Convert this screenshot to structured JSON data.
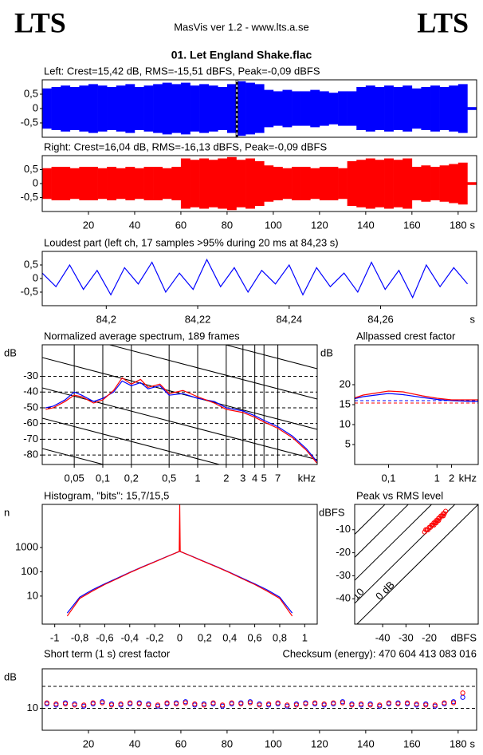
{
  "header": {
    "logo_left": "LTS",
    "logo_right": "LTS",
    "title": "MasVis ver 1.2 - www.lts.a.se",
    "file": "01. Let England Shake.flac"
  },
  "chart_data": [
    {
      "type": "waveform",
      "title": "Left: Crest=15,42 dB, RMS=-15,51 dBFS, Peak=-0,09 dBFS",
      "color": "#0000ff",
      "x": [
        0,
        4,
        8,
        12,
        16,
        20,
        24,
        28,
        32,
        36,
        40,
        44,
        48,
        52,
        56,
        60,
        64,
        68,
        72,
        76,
        80,
        84,
        88,
        92,
        96,
        100,
        104,
        108,
        112,
        116,
        120,
        124,
        128,
        132,
        136,
        140,
        144,
        148,
        152,
        156,
        160,
        164,
        168,
        172,
        176,
        180,
        184
      ],
      "values": [
        0.7,
        0.75,
        0.8,
        0.75,
        0.8,
        0.85,
        0.8,
        0.75,
        0.8,
        0.85,
        0.75,
        0.8,
        0.85,
        0.9,
        0.85,
        0.9,
        0.8,
        0.85,
        0.8,
        0.75,
        0.85,
        0.95,
        0.9,
        0.85,
        0.65,
        0.6,
        0.65,
        0.6,
        0.6,
        0.65,
        0.6,
        0.55,
        0.6,
        0.6,
        0.75,
        0.8,
        0.75,
        0.8,
        0.75,
        0.8,
        0.7,
        0.75,
        0.8,
        0.75,
        0.8,
        0.85,
        0.05
      ],
      "marker_x": 84.23,
      "xlim": [
        0,
        188
      ],
      "ylim": [
        -1,
        1
      ],
      "yticks": [
        {
          "value": 0.5,
          "label": "0,5"
        },
        0,
        {
          "value": -0.5,
          "label": "-0,5"
        }
      ]
    },
    {
      "type": "waveform",
      "title": "Right: Crest=16,04 dB, RMS=-16,13 dBFS, Peak=-0,09 dBFS",
      "color": "#ff0000",
      "x": [
        0,
        4,
        8,
        12,
        16,
        20,
        24,
        28,
        32,
        36,
        40,
        44,
        48,
        52,
        56,
        60,
        64,
        68,
        72,
        76,
        80,
        84,
        88,
        92,
        96,
        100,
        104,
        108,
        112,
        116,
        120,
        124,
        128,
        132,
        136,
        140,
        144,
        148,
        152,
        156,
        160,
        164,
        168,
        172,
        176,
        180,
        184
      ],
      "values": [
        0.55,
        0.6,
        0.6,
        0.55,
        0.6,
        0.6,
        0.55,
        0.6,
        0.55,
        0.6,
        0.55,
        0.6,
        0.6,
        0.55,
        0.6,
        0.9,
        0.85,
        0.9,
        0.85,
        0.9,
        0.95,
        0.85,
        0.9,
        0.8,
        0.65,
        0.6,
        0.55,
        0.6,
        0.6,
        0.55,
        0.6,
        0.6,
        0.55,
        0.8,
        0.85,
        0.9,
        0.85,
        0.9,
        0.85,
        0.9,
        0.6,
        0.65,
        0.6,
        0.65,
        0.7,
        0.75,
        0.05
      ],
      "xlim": [
        0,
        188
      ],
      "ylim": [
        -1,
        1
      ],
      "x_unit": "s",
      "yticks": [
        {
          "value": 0.5,
          "label": "0,5"
        },
        0,
        {
          "value": -0.5,
          "label": "-0,5"
        }
      ],
      "xticks": [
        20,
        40,
        60,
        80,
        100,
        120,
        140,
        160,
        180
      ]
    },
    {
      "type": "line",
      "title": "Loudest part (left  ch, 17 samples >95% during 20 ms at 84,23 s)",
      "color": "#0000ff",
      "x": [
        84.186,
        84.189,
        84.192,
        84.195,
        84.198,
        84.201,
        84.204,
        84.207,
        84.21,
        84.213,
        84.216,
        84.219,
        84.222,
        84.225,
        84.228,
        84.231,
        84.234,
        84.237,
        84.24,
        84.243,
        84.246,
        84.249,
        84.252,
        84.255,
        84.258,
        84.261,
        84.264,
        84.267,
        84.27,
        84.273,
        84.276,
        84.279
      ],
      "values": [
        0.2,
        -0.3,
        0.5,
        -0.4,
        0.3,
        -0.6,
        0.4,
        -0.2,
        0.6,
        -0.5,
        0.2,
        -0.4,
        0.7,
        -0.3,
        0.4,
        -0.5,
        0.3,
        -0.2,
        0.5,
        -0.6,
        0.4,
        -0.3,
        0.2,
        -0.5,
        0.6,
        -0.4,
        0.3,
        -0.7,
        0.5,
        -0.3,
        0.4,
        -0.2
      ],
      "xlim": [
        84.186,
        84.281
      ],
      "ylim": [
        -1,
        1
      ],
      "x_unit": "s",
      "yticks": [
        {
          "value": 0.5,
          "label": "0,5"
        },
        0,
        {
          "value": -0.5,
          "label": "-0,5"
        }
      ],
      "xticks": [
        {
          "value": 84.2,
          "label": "84,2"
        },
        {
          "value": 84.22,
          "label": "84,22"
        },
        {
          "value": 84.24,
          "label": "84,24"
        },
        {
          "value": 84.26,
          "label": "84,26"
        }
      ]
    },
    {
      "type": "line",
      "title": "Normalized average spectrum, 189 frames",
      "y_unit": "dB",
      "x_unit": "kHz",
      "xscale": "log",
      "grid": true,
      "x": [
        0.025,
        0.03,
        0.04,
        0.05,
        0.06,
        0.08,
        0.1,
        0.13,
        0.16,
        0.2,
        0.25,
        0.3,
        0.4,
        0.5,
        0.7,
        1,
        1.5,
        2,
        3,
        4,
        5,
        7,
        10,
        14,
        18
      ],
      "series": [
        {
          "color": "#0000ff",
          "values": [
            -50,
            -49,
            -45,
            -40,
            -42,
            -46,
            -44,
            -40,
            -33,
            -36,
            -34,
            -38,
            -36,
            -42,
            -41,
            -44,
            -46,
            -50,
            -52,
            -55,
            -58,
            -62,
            -68,
            -76,
            -84
          ]
        },
        {
          "color": "#ff0000",
          "values": [
            -51,
            -50,
            -46,
            -42,
            -43,
            -47,
            -45,
            -39,
            -31,
            -35,
            -32,
            -37,
            -35,
            -41,
            -39,
            -43,
            -47,
            -51,
            -53,
            -56,
            -59,
            -63,
            -69,
            -77,
            -85
          ]
        }
      ],
      "xlim": [
        0.023,
        18.2
      ],
      "ylim": [
        -86,
        -10
      ],
      "yticks": [
        -30,
        -40,
        -50,
        -60,
        -70,
        -80
      ],
      "xticks": [
        {
          "value": 0.05,
          "label": "0,05"
        },
        {
          "value": 0.1,
          "label": "0,1"
        },
        {
          "value": 0.2,
          "label": "0,2"
        },
        {
          "value": 0.5,
          "label": "0,5"
        },
        1,
        2,
        3,
        4,
        5,
        7
      ]
    },
    {
      "type": "line",
      "title": "Allpassed crest factor",
      "y_unit": "dB",
      "x_unit": "kHz",
      "xscale": "log",
      "x": [
        0.02,
        0.03,
        0.1,
        0.2,
        0.5,
        1,
        2,
        5,
        7
      ],
      "series": [
        {
          "color": "#0000ff",
          "values": [
            16.5,
            17,
            17.8,
            17.5,
            16.8,
            16.3,
            16,
            15.8,
            15.8
          ]
        },
        {
          "color": "#ff0000",
          "values": [
            16.7,
            17.4,
            18.4,
            18.2,
            17.2,
            16.6,
            16.2,
            16.2,
            16.2
          ]
        }
      ],
      "reference_lines": [
        16,
        15.4
      ],
      "xlim": [
        0.02,
        7.1
      ],
      "ylim": [
        0,
        30
      ],
      "yticks": [
        20,
        15,
        10,
        5
      ],
      "xticks": [
        {
          "value": 0.1,
          "label": "0,1"
        },
        1,
        2
      ]
    },
    {
      "type": "line",
      "title": "Histogram, \"bits\": 15,7/15,5",
      "y_unit": "n",
      "yscale": "log",
      "x": [
        -0.9,
        -0.8,
        -0.7,
        -0.6,
        -0.5,
        -0.4,
        -0.3,
        -0.2,
        -0.1,
        0,
        0.1,
        0.2,
        0.3,
        0.4,
        0.5,
        0.6,
        0.7,
        0.8,
        0.9
      ],
      "series": [
        {
          "color": "#0000ff",
          "values": [
            2,
            9,
            18,
            32,
            55,
            95,
            160,
            260,
            430,
            700,
            430,
            260,
            160,
            95,
            55,
            32,
            18,
            9,
            2
          ]
        },
        {
          "color": "#ff0000",
          "x": [
            -0.9,
            -0.8,
            -0.7,
            -0.6,
            -0.5,
            -0.4,
            -0.3,
            -0.2,
            -0.1,
            -0.004,
            0,
            0.004,
            0.1,
            0.2,
            0.3,
            0.4,
            0.5,
            0.6,
            0.7,
            0.8,
            0.9
          ],
          "values": [
            1.5,
            8,
            16,
            30,
            52,
            92,
            155,
            255,
            425,
            690,
            60000,
            690,
            425,
            255,
            155,
            92,
            52,
            30,
            16,
            8,
            1.5
          ]
        }
      ],
      "xlim": [
        -1.1,
        1.1
      ],
      "ylim": [
        0.7,
        60000
      ],
      "yticks": [
        10,
        100,
        1000
      ],
      "xticks": [
        -1,
        {
          "value": -0.8,
          "label": "-0,8"
        },
        {
          "value": -0.6,
          "label": "-0,6"
        },
        {
          "value": -0.4,
          "label": "-0,4"
        },
        {
          "value": -0.2,
          "label": "-0,2"
        },
        0,
        {
          "value": 0.2,
          "label": "0,2"
        },
        {
          "value": 0.4,
          "label": "0,4"
        },
        {
          "value": 0.6,
          "label": "0,6"
        },
        {
          "value": 0.8,
          "label": "0,8"
        },
        1
      ]
    },
    {
      "type": "scatter",
      "title": "Peak vs RMS level",
      "y_unit": "dBFS",
      "x_unit": "dBFS",
      "color": "#ff0000",
      "x": [
        -22,
        -21,
        -20,
        -19,
        -18,
        -17,
        -16,
        -15,
        -14,
        -13,
        -20.5,
        -19.5,
        -18.5,
        -17.5,
        -16.5,
        -15.5,
        -14.5,
        -21.5,
        -18,
        -16,
        -14,
        -13.5,
        -19,
        -17
      ],
      "values": [
        -11,
        -10,
        -9,
        -8,
        -7,
        -6,
        -5,
        -4,
        -3,
        -2,
        -10,
        -9,
        -8,
        -7,
        -6,
        -5,
        -4,
        -10,
        -8,
        -6,
        -4,
        -3,
        -8,
        -7
      ],
      "crest_lines": [
        {
          "value": 0,
          "label": "0 dB"
        },
        10,
        20,
        30,
        40
      ],
      "xlim": [
        -52,
        1
      ],
      "ylim": [
        -51,
        1
      ],
      "yticks": [
        -10,
        -20,
        -30,
        -40
      ],
      "xticks": [
        -40,
        -30,
        -20
      ]
    },
    {
      "type": "scatter",
      "title": "Short term (1 s) crest factor",
      "annotation": "Checksum (energy):   470 604 413 083 016",
      "y_unit": "dB",
      "x_unit": "s",
      "grid": true,
      "x": [
        2,
        6,
        10,
        14,
        18,
        22,
        26,
        30,
        34,
        38,
        42,
        46,
        50,
        54,
        58,
        62,
        66,
        70,
        74,
        78,
        82,
        86,
        90,
        94,
        98,
        102,
        106,
        110,
        114,
        118,
        122,
        126,
        130,
        134,
        138,
        142,
        146,
        150,
        154,
        158,
        162,
        166,
        170,
        174,
        178,
        182
      ],
      "series": [
        {
          "color": "#0000ff",
          "values": [
            12,
            11.5,
            12.5,
            12,
            11,
            12,
            13,
            12,
            11.5,
            12,
            12.5,
            12,
            11,
            12,
            12.5,
            13,
            11.5,
            12,
            12,
            11,
            12,
            12.5,
            13,
            12,
            11.5,
            12,
            11,
            12,
            12.5,
            12,
            11.5,
            12,
            13,
            12,
            11.5,
            12,
            11,
            12,
            12.5,
            12,
            11.5,
            12,
            11,
            12,
            13,
            15
          ]
        },
        {
          "color": "#ff0000",
          "values": [
            12.5,
            12,
            12,
            11.5,
            11.5,
            12.5,
            12.5,
            11.5,
            12,
            12.5,
            12,
            11.5,
            11.5,
            12.5,
            12,
            12.5,
            12,
            11.5,
            12.5,
            11.5,
            12.5,
            12,
            12.5,
            11.5,
            12,
            12.5,
            11.5,
            11.5,
            12,
            12.5,
            12,
            12.5,
            12.5,
            11.5,
            12,
            11.5,
            11.5,
            12.5,
            12,
            12.5,
            12,
            11.5,
            11.5,
            12.5,
            12.5,
            17
          ]
        }
      ],
      "reference_lines": [
        20
      ],
      "xlim": [
        0,
        188
      ],
      "ylim": [
        0,
        28
      ],
      "yticks": [
        10
      ],
      "xticks": [
        20,
        40,
        60,
        80,
        100,
        120,
        140,
        160,
        180
      ]
    }
  ]
}
